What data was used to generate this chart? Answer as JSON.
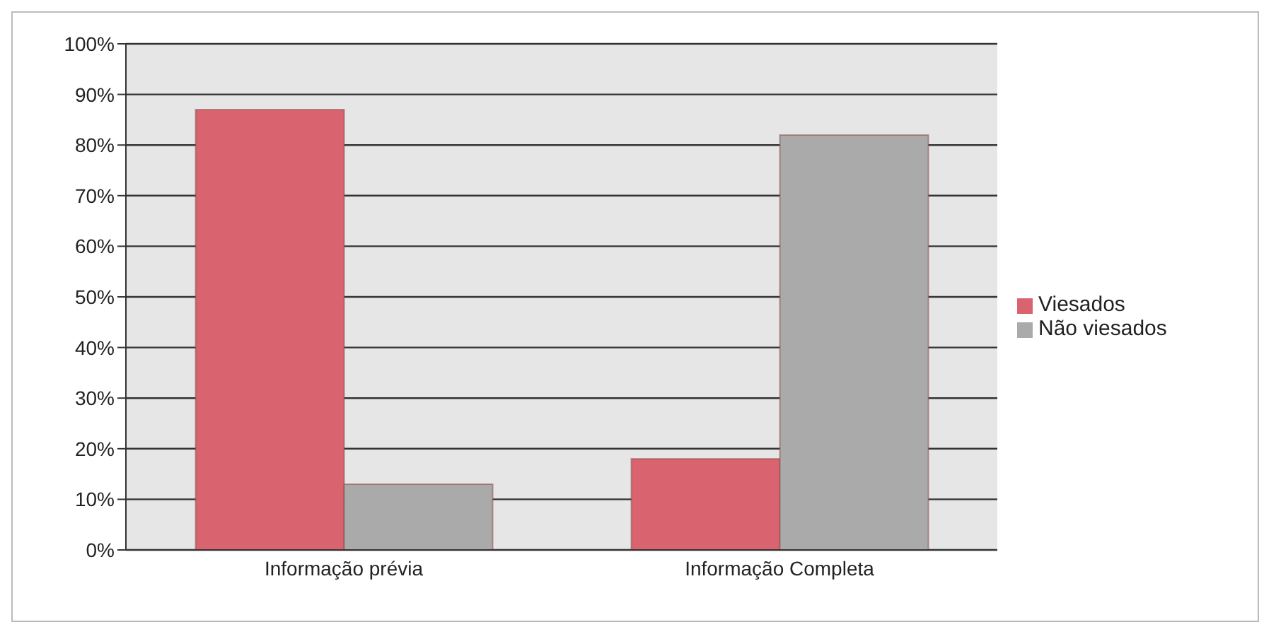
{
  "chart_data": {
    "type": "bar",
    "categories": [
      "Informação prévia",
      "Informação Completa"
    ],
    "series": [
      {
        "name": "Viesados",
        "color": "#d9646f",
        "values": [
          87,
          18
        ]
      },
      {
        "name": "Não viesados",
        "color": "#aaaaaa",
        "values": [
          13,
          82
        ]
      }
    ],
    "ylim": [
      0,
      100
    ],
    "yticks": [
      {
        "value": 0,
        "label": "0%"
      },
      {
        "value": 10,
        "label": "10%"
      },
      {
        "value": 20,
        "label": "20%"
      },
      {
        "value": 30,
        "label": "30%"
      },
      {
        "value": 40,
        "label": "40%"
      },
      {
        "value": 50,
        "label": "50%"
      },
      {
        "value": 60,
        "label": "60%"
      },
      {
        "value": 70,
        "label": "70%"
      },
      {
        "value": 80,
        "label": "80%"
      },
      {
        "value": 90,
        "label": "90%"
      },
      {
        "value": 100,
        "label": "100%"
      }
    ],
    "grid": "y",
    "legend": "right"
  }
}
